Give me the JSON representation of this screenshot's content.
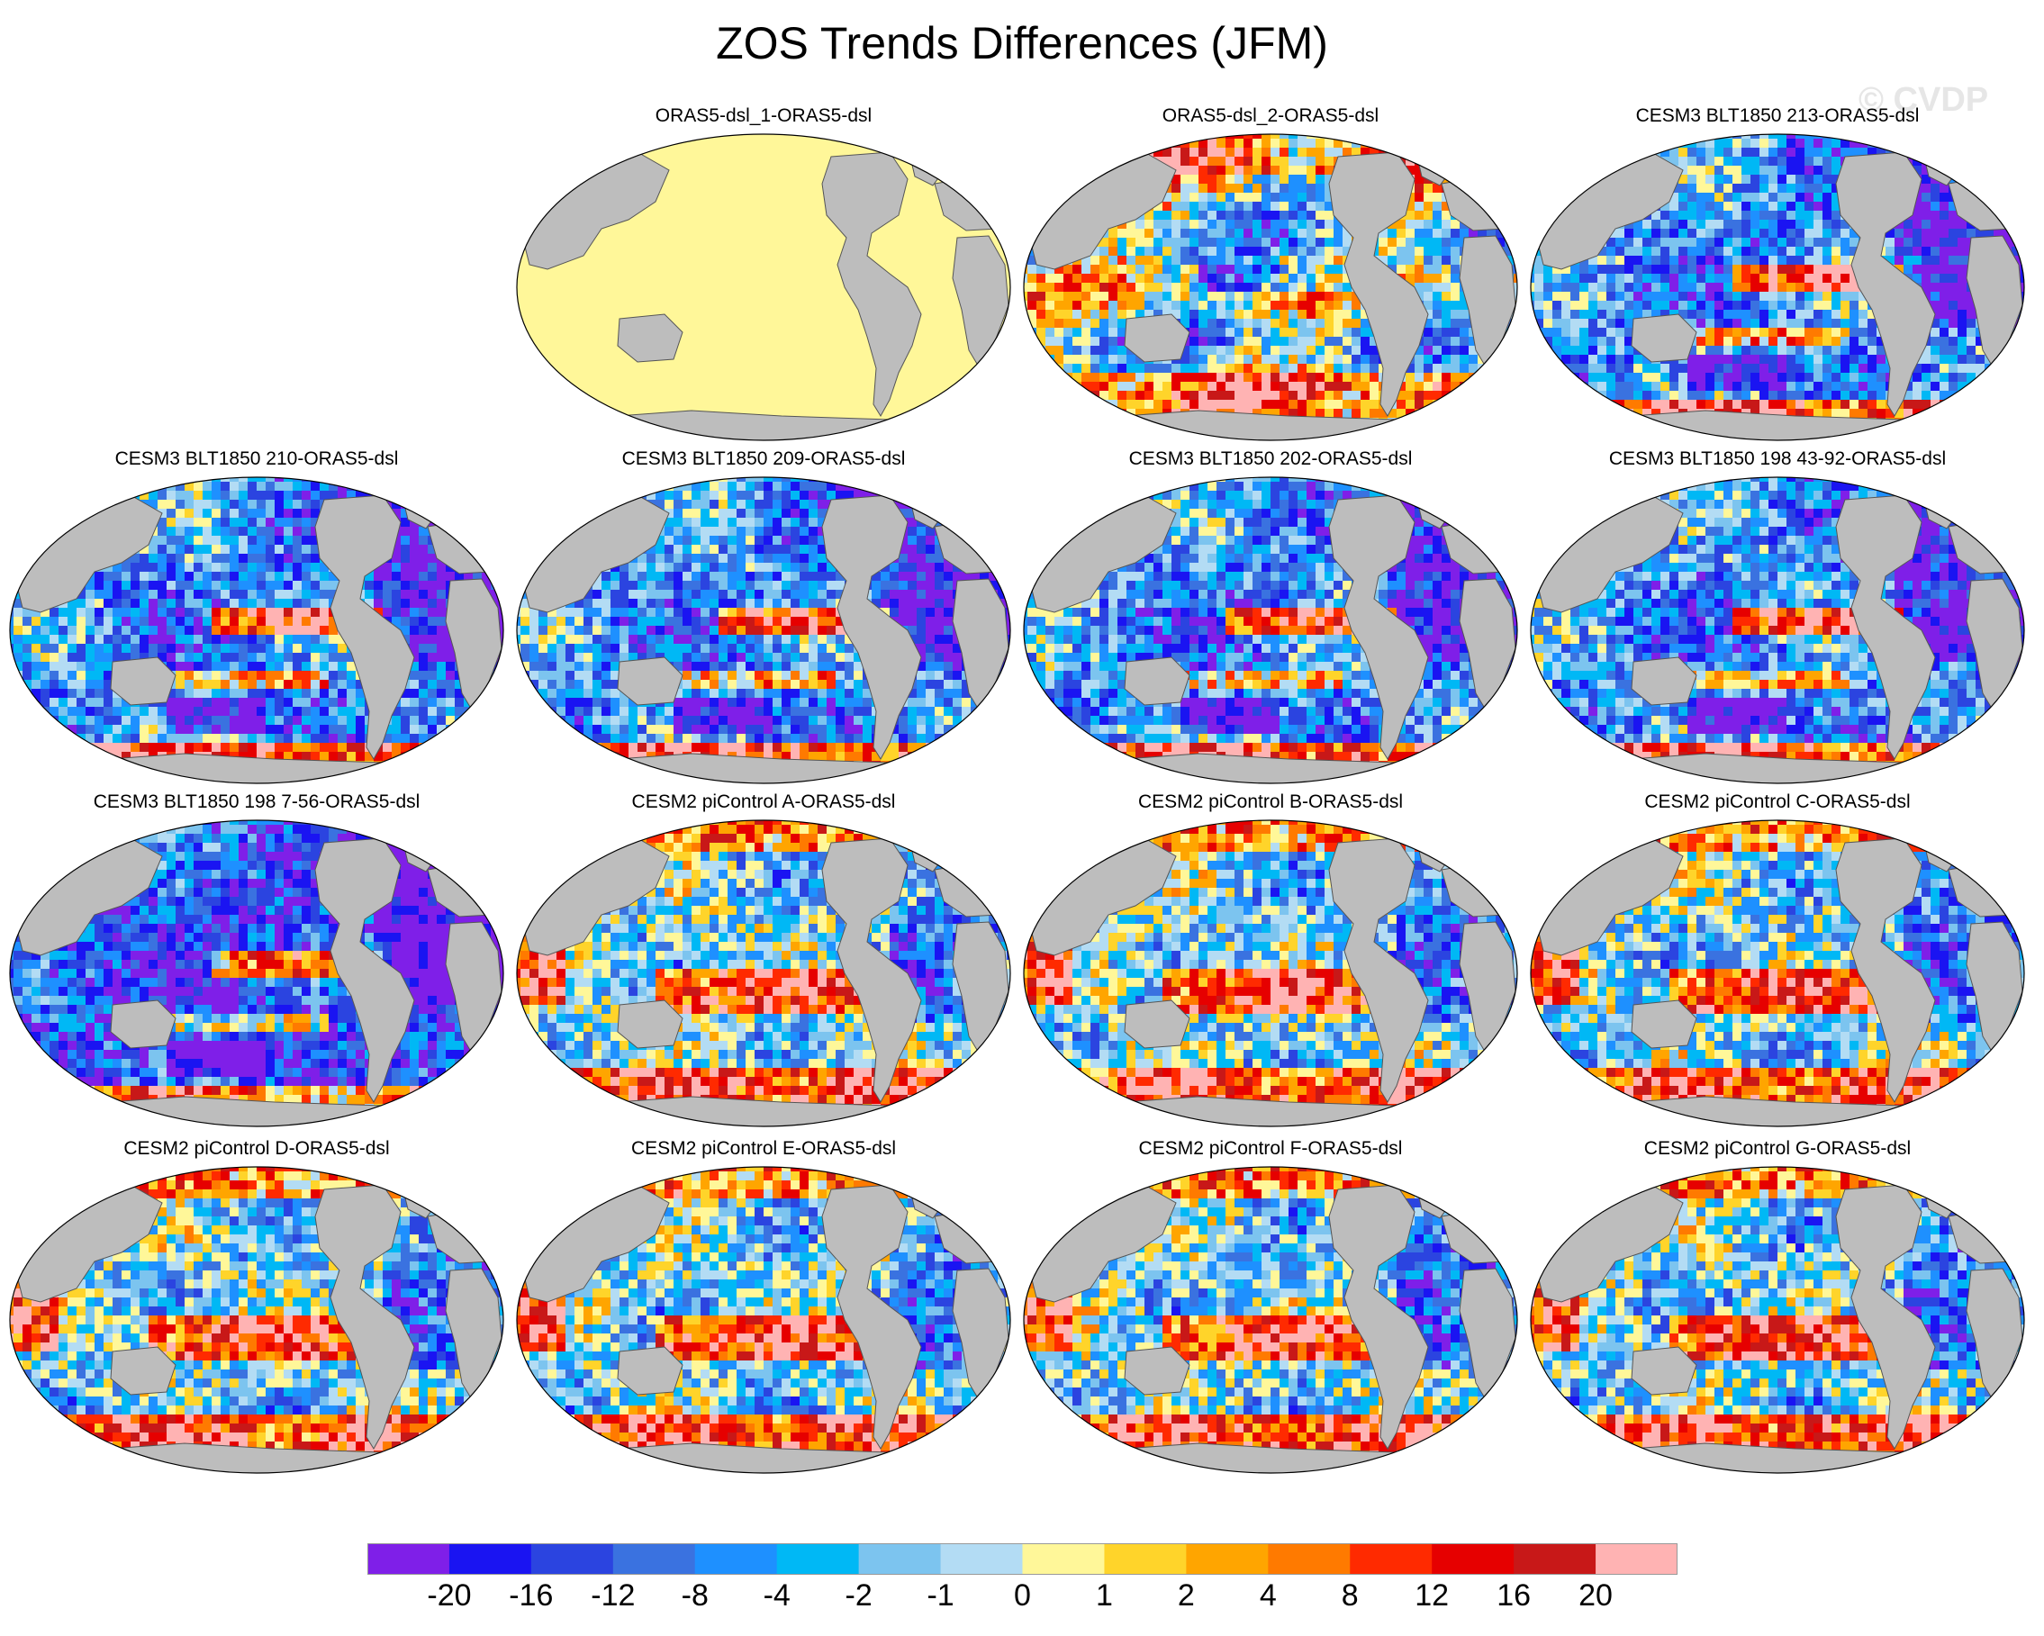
{
  "title": "ZOS Trends Differences (JFM)",
  "watermark": "© CVDP",
  "colors": {
    "land": "#bdbdbd",
    "coast": "#555555",
    "zero_fill": "#fff799",
    "colorbar": [
      "#7f1fe8",
      "#1a14f2",
      "#2b44e0",
      "#3a72e0",
      "#1e90ff",
      "#00b8f5",
      "#7cc4ef",
      "#b3dcf4",
      "#fff799",
      "#ffd42a",
      "#ffa500",
      "#ff7a00",
      "#ff2a00",
      "#e60000",
      "#c81818",
      "#ffb3b3"
    ]
  },
  "colorbar": {
    "labels": [
      "-20",
      "-16",
      "-12",
      "-8",
      "-4",
      "-2",
      "-1",
      "0",
      "1",
      "2",
      "4",
      "8",
      "12",
      "16",
      "20"
    ]
  },
  "panels": [
    {
      "title": "ORAS5-dsl_1-ORAS5-dsl",
      "pattern": "zero"
    },
    {
      "title": "ORAS5-dsl_2-ORAS5-dsl",
      "pattern": "oras"
    },
    {
      "title": "CESM3 BLT1850 213-ORAS5-dsl",
      "pattern": "cesm3"
    },
    {
      "title": "CESM3 BLT1850 210-ORAS5-dsl",
      "pattern": "cesm3"
    },
    {
      "title": "CESM3 BLT1850 209-ORAS5-dsl",
      "pattern": "cesm3"
    },
    {
      "title": "CESM3 BLT1850 202-ORAS5-dsl",
      "pattern": "cesm3"
    },
    {
      "title": "CESM3 BLT1850 198 43-92-ORAS5-dsl",
      "pattern": "cesm3"
    },
    {
      "title": "CESM3 BLT1850 198 7-56-ORAS5-dsl",
      "pattern": "cesm3b"
    },
    {
      "title": "CESM2 piControl A-ORAS5-dsl",
      "pattern": "cesm2"
    },
    {
      "title": "CESM2 piControl B-ORAS5-dsl",
      "pattern": "cesm2"
    },
    {
      "title": "CESM2 piControl C-ORAS5-dsl",
      "pattern": "cesm2"
    },
    {
      "title": "CESM2 piControl D-ORAS5-dsl",
      "pattern": "cesm2"
    },
    {
      "title": "CESM2 piControl E-ORAS5-dsl",
      "pattern": "cesm2"
    },
    {
      "title": "CESM2 piControl F-ORAS5-dsl",
      "pattern": "cesm2"
    },
    {
      "title": "CESM2 piControl G-ORAS5-dsl",
      "pattern": "cesm2"
    }
  ]
}
